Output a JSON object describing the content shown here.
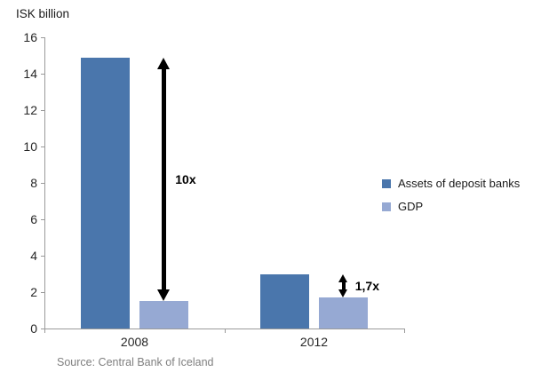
{
  "chart_data": {
    "type": "bar",
    "title": "",
    "ylabel": "ISK billion",
    "xlabel": "",
    "categories": [
      "2008",
      "2012"
    ],
    "series": [
      {
        "name": "Assets of deposit banks",
        "color": "#4A76AC",
        "values": [
          14.9,
          3.0
        ]
      },
      {
        "name": "GDP",
        "color": "#96A9D3",
        "values": [
          1.5,
          1.7
        ]
      }
    ],
    "ylim": [
      0,
      16
    ],
    "yticks": [
      0,
      2,
      4,
      6,
      8,
      10,
      12,
      14,
      16
    ],
    "grid": false,
    "legend_position": "right",
    "annotations": [
      {
        "type": "double_arrow",
        "label": "10x",
        "category": "2008",
        "from_series": "Assets of deposit banks",
        "to_series": "GDP"
      },
      {
        "type": "double_arrow",
        "label": "1,7x",
        "category": "2012",
        "from_series": "Assets of deposit banks",
        "to_series": "GDP"
      }
    ],
    "source": "Source: Central Bank of Iceland"
  }
}
